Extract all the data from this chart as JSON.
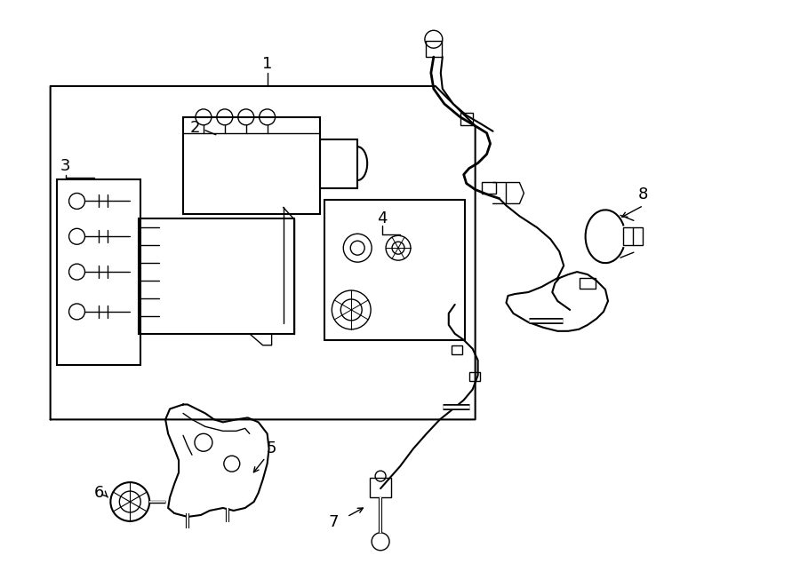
{
  "background_color": "#ffffff",
  "line_color": "#000000",
  "line_width": 1.5,
  "label_fontsize": 13,
  "fig_width": 9.0,
  "fig_height": 6.61,
  "dpi": 100
}
